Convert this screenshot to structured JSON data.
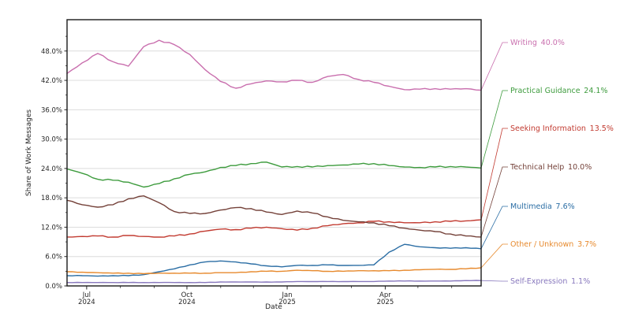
{
  "chart_data": {
    "type": "line",
    "title": "",
    "xlabel": "Date",
    "ylabel": "Share of Work Messages",
    "grid": "horizontal-major",
    "legend_position": "right-edge-annotations",
    "ylim": [
      0,
      54.4
    ],
    "x_dates": [
      "2024-06-13",
      "2024-06-27",
      "2024-07-11",
      "2024-07-25",
      "2024-08-08",
      "2024-08-22",
      "2024-09-05",
      "2024-09-19",
      "2024-10-03",
      "2024-10-17",
      "2024-10-31",
      "2024-11-14",
      "2024-11-28",
      "2024-12-12",
      "2024-12-26",
      "2025-01-09",
      "2025-01-23",
      "2025-02-06",
      "2025-02-20",
      "2025-03-06",
      "2025-03-20",
      "2025-04-03",
      "2025-04-17",
      "2025-05-01",
      "2025-05-15",
      "2025-05-29",
      "2025-06-12",
      "2025-06-26"
    ],
    "series": [
      {
        "name": "Writing",
        "final_pct": "40.0%",
        "color": "#c96fae",
        "label_y": 54,
        "values": [
          43.4,
          45.6,
          47.5,
          45.8,
          44.9,
          48.9,
          50.2,
          49.3,
          47.3,
          44.2,
          41.8,
          40.4,
          41.3,
          41.9,
          41.7,
          42.0,
          41.6,
          42.8,
          43.2,
          42.2,
          41.6,
          40.8,
          40.1,
          40.2,
          40.3,
          40.2,
          40.3,
          40.0
        ]
      },
      {
        "name": "Practical Guidance",
        "final_pct": "24.1%",
        "color": "#3d9b3d",
        "label_y": 115,
        "values": [
          23.9,
          23.0,
          21.8,
          21.6,
          21.2,
          20.2,
          20.9,
          21.9,
          22.8,
          23.3,
          24.2,
          24.6,
          25.0,
          25.3,
          24.3,
          24.4,
          24.3,
          24.6,
          24.7,
          24.9,
          25.0,
          24.6,
          24.3,
          24.2,
          24.3,
          24.4,
          24.3,
          24.1
        ]
      },
      {
        "name": "Seeking Information",
        "final_pct": "13.5%",
        "color": "#c23b31",
        "label_y": 163,
        "values": [
          10.0,
          10.1,
          10.2,
          10.0,
          10.3,
          10.1,
          10.0,
          10.2,
          10.6,
          11.2,
          11.6,
          11.5,
          11.8,
          12.0,
          11.7,
          11.4,
          11.8,
          12.3,
          12.7,
          12.9,
          13.2,
          13.1,
          12.9,
          12.9,
          13.1,
          13.2,
          13.3,
          13.5
        ]
      },
      {
        "name": "Technical Help",
        "final_pct": "10.0%",
        "color": "#744139",
        "label_y": 212,
        "values": [
          17.5,
          16.6,
          16.1,
          16.6,
          17.8,
          18.4,
          17.0,
          15.2,
          14.8,
          14.8,
          15.5,
          16.0,
          15.8,
          15.1,
          14.6,
          15.3,
          14.9,
          14.1,
          13.4,
          13.1,
          12.9,
          12.3,
          11.8,
          11.4,
          11.1,
          10.6,
          10.2,
          10.0
        ]
      },
      {
        "name": "Multimedia",
        "final_pct": "7.6%",
        "color": "#2a6da4",
        "label_y": 262,
        "values": [
          2.1,
          2.1,
          2.0,
          2.1,
          2.1,
          2.3,
          2.9,
          3.5,
          4.3,
          4.9,
          5.1,
          4.9,
          4.5,
          4.1,
          3.9,
          4.2,
          4.2,
          4.3,
          4.2,
          4.2,
          4.3,
          6.9,
          8.5,
          8.0,
          7.8,
          7.7,
          7.8,
          7.6
        ]
      },
      {
        "name": "Other / Unknown",
        "final_pct": "3.7%",
        "color": "#e78a2e",
        "label_y": 310,
        "values": [
          2.9,
          2.8,
          2.7,
          2.6,
          2.6,
          2.5,
          2.6,
          2.6,
          2.6,
          2.6,
          2.7,
          2.7,
          2.9,
          3.0,
          3.0,
          3.2,
          3.1,
          3.0,
          3.0,
          3.1,
          3.1,
          3.1,
          3.2,
          3.3,
          3.4,
          3.4,
          3.5,
          3.7
        ]
      },
      {
        "name": "Self-Expression",
        "final_pct": "1.1%",
        "color": "#8878bd",
        "label_y": 357,
        "values": [
          0.7,
          0.7,
          0.7,
          0.7,
          0.7,
          0.7,
          0.7,
          0.7,
          0.7,
          0.7,
          0.8,
          0.8,
          0.8,
          0.8,
          0.8,
          0.9,
          0.9,
          0.9,
          0.9,
          0.9,
          0.9,
          1.0,
          1.0,
          1.0,
          1.0,
          1.0,
          1.1,
          1.1
        ]
      }
    ],
    "y_ticks": [
      {
        "value": 0,
        "label": "0.0%"
      },
      {
        "value": 6,
        "label": "6.0%"
      },
      {
        "value": 12,
        "label": "12.0%"
      },
      {
        "value": 18,
        "label": "18.0%"
      },
      {
        "value": 24,
        "label": "24.0%"
      },
      {
        "value": 30,
        "label": "30.0%"
      },
      {
        "value": 36,
        "label": "36.0%"
      },
      {
        "value": 42,
        "label": "42.0%"
      },
      {
        "value": 48,
        "label": "48.0%"
      }
    ],
    "x_ticks_major": [
      {
        "day": 18,
        "month": "Jul",
        "year": "2024"
      },
      {
        "day": 110,
        "month": "Oct",
        "year": "2024"
      },
      {
        "day": 202,
        "month": "Jan",
        "year": "2025"
      },
      {
        "day": 292,
        "month": "Apr",
        "year": "2025"
      }
    ],
    "x_ticks_minor_days": [
      49,
      80,
      141,
      171,
      233,
      261,
      322,
      353
    ],
    "timeline_days": 380
  }
}
